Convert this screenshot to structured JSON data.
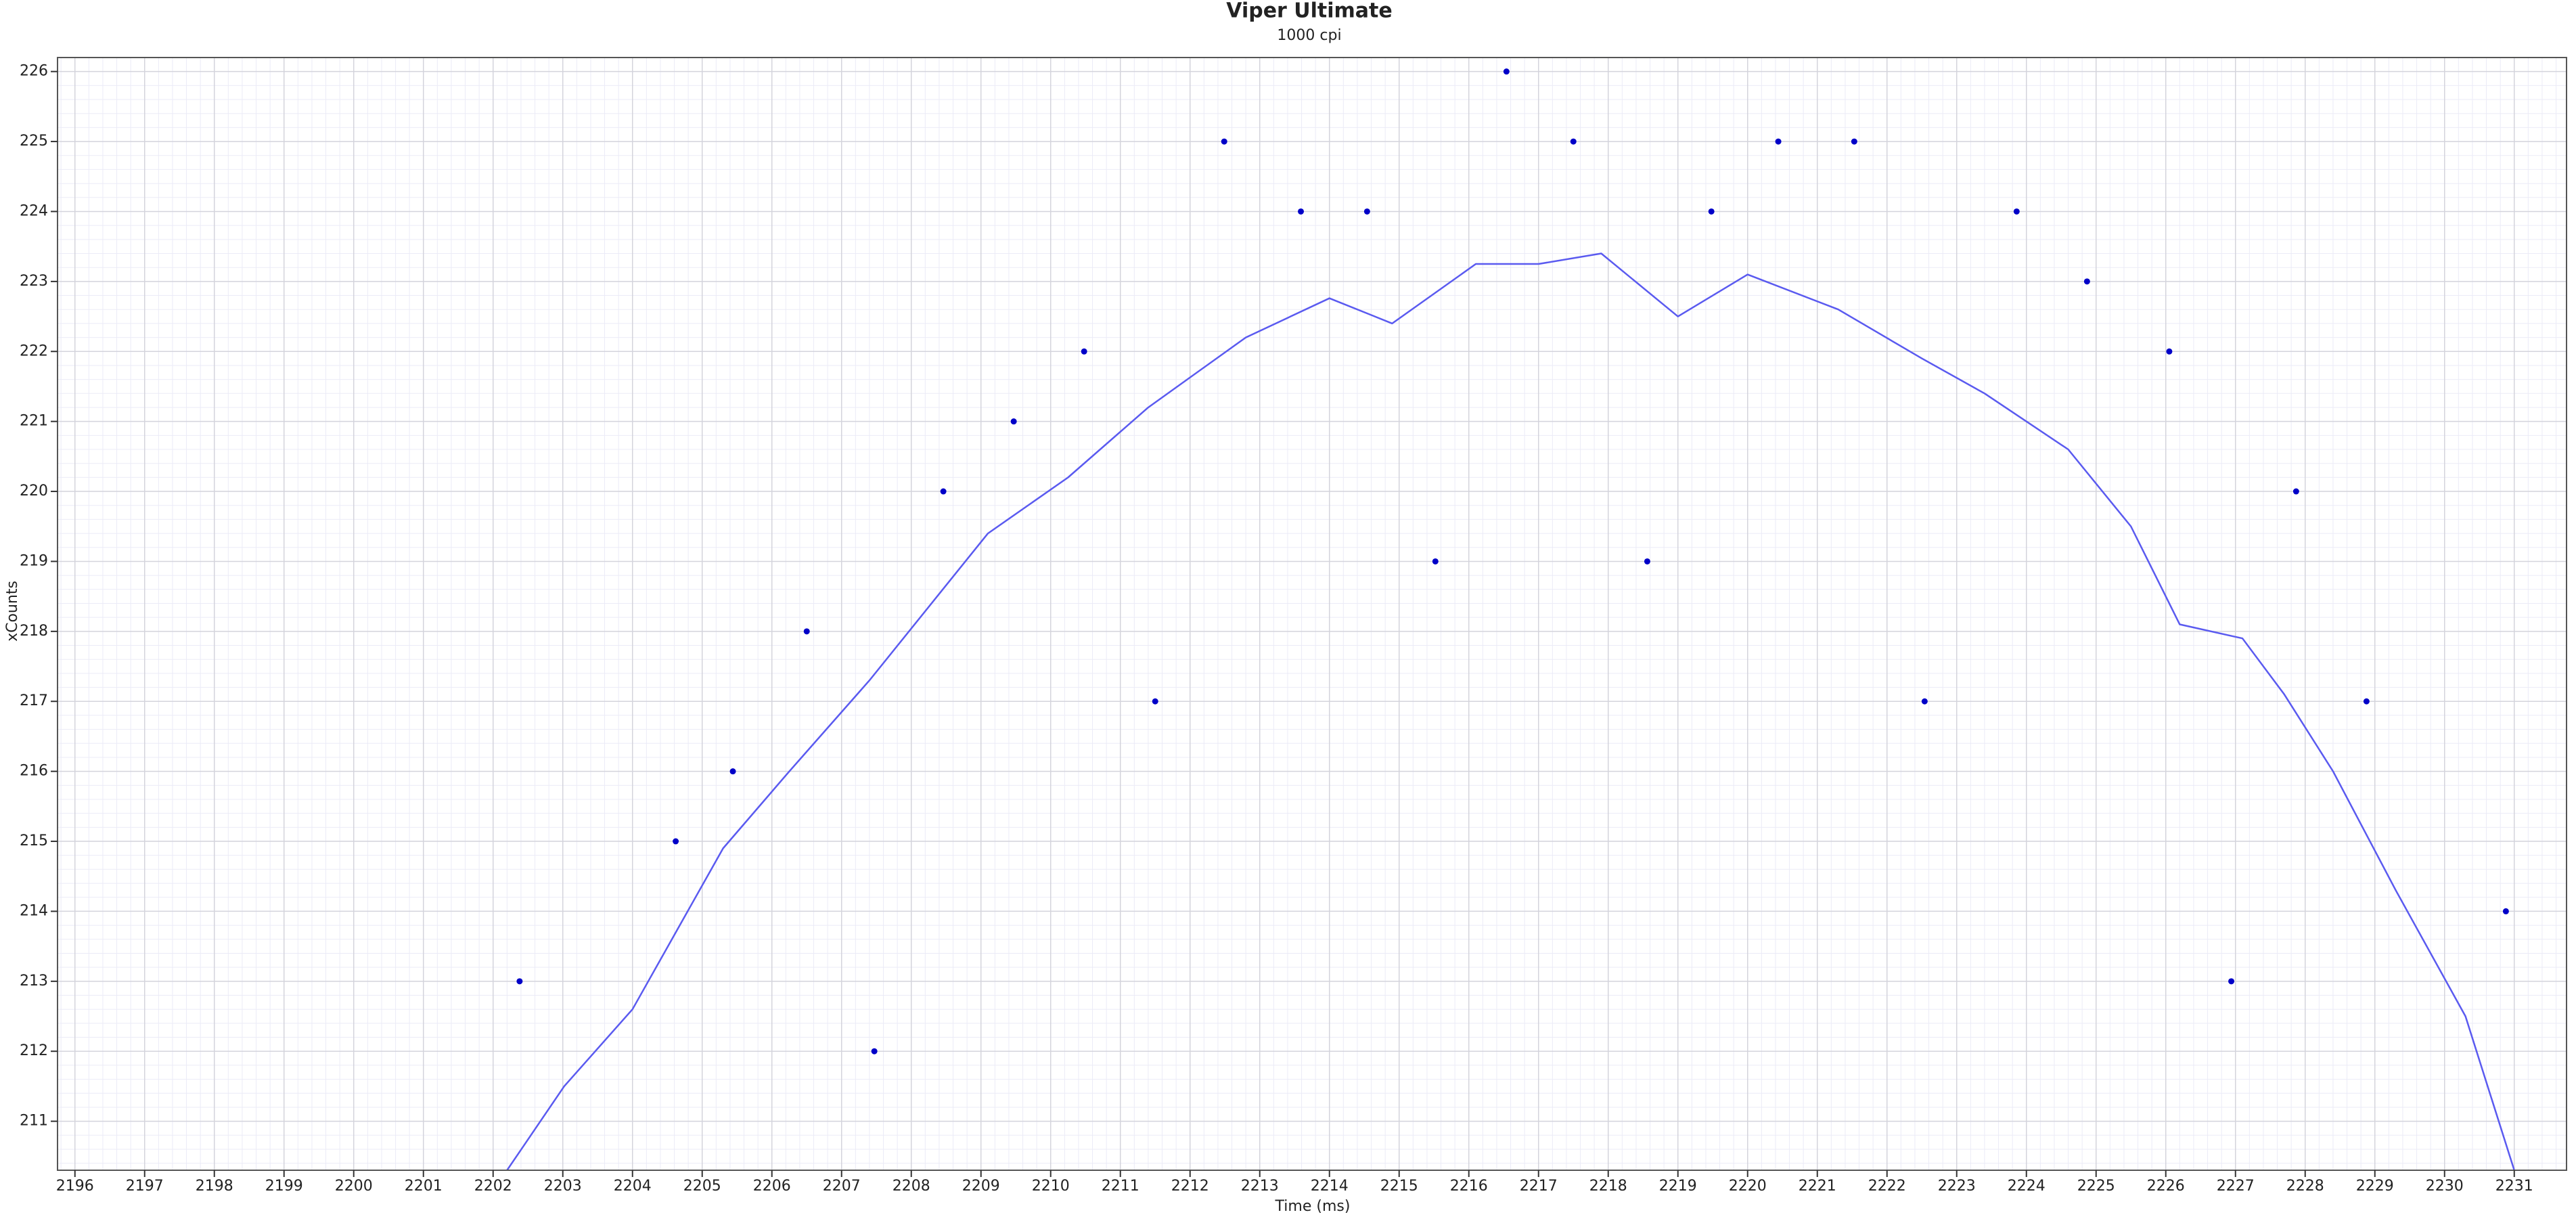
{
  "chart_data": {
    "type": "scatter",
    "title": "Viper Ultimate",
    "subtitle": "1000 cpi",
    "x_label": "Time (ms)",
    "y_label": "xCounts",
    "xlim": [
      2195.75,
      2231.75
    ],
    "ylim": [
      210.3,
      226.2
    ],
    "xticks": [
      2196,
      2197,
      2198,
      2199,
      2200,
      2201,
      2202,
      2203,
      2204,
      2205,
      2206,
      2207,
      2208,
      2209,
      2210,
      2211,
      2212,
      2213,
      2214,
      2215,
      2216,
      2217,
      2218,
      2219,
      2220,
      2221,
      2222,
      2223,
      2224,
      2225,
      2226,
      2227,
      2228,
      2229,
      2230,
      2231
    ],
    "yticks": [
      211,
      212,
      213,
      214,
      215,
      216,
      217,
      218,
      219,
      220,
      221,
      222,
      223,
      224,
      225,
      226
    ],
    "grid": true,
    "series": [
      {
        "type": "scatter",
        "color": "#0000c8",
        "x": [
          2202.38,
          2204.62,
          2205.44,
          2206.5,
          2207.47,
          2208.46,
          2209.47,
          2210.48,
          2211.5,
          2212.49,
          2213.59,
          2214.54,
          2215.52,
          2216.54,
          2217.5,
          2218.56,
          2219.48,
          2220.44,
          2221.53,
          2222.54,
          2223.86,
          2224.87,
          2226.05,
          2226.94,
          2227.87,
          2228.88,
          2230.88
        ],
        "values": [
          213,
          215,
          216,
          218,
          212,
          220,
          221,
          222,
          217,
          225,
          224,
          224,
          219,
          226,
          225,
          219,
          224,
          225,
          225,
          217,
          224,
          223,
          222,
          213,
          220,
          217,
          214
        ]
      },
      {
        "type": "line",
        "color": "#5a5af0",
        "x": [
          2202.2,
          2203.02,
          2204.0,
          2205.3,
          2206.25,
          2207.4,
          2209.1,
          2210.25,
          2211.4,
          2212.8,
          2214.0,
          2214.9,
          2216.1,
          2217.0,
          2217.9,
          2219.0,
          2220.0,
          2221.3,
          2222.5,
          2223.4,
          2224.6,
          2225.5,
          2226.2,
          2227.1,
          2227.7,
          2228.4,
          2229.3,
          2230.3,
          2231.0
        ],
        "values": [
          210.3,
          211.5,
          212.6,
          214.9,
          216,
          217.3,
          219.4,
          220.2,
          221.2,
          222.2,
          222.76,
          222.4,
          223.25,
          223.25,
          223.4,
          222.5,
          223.1,
          222.6,
          221.9,
          221.4,
          220.6,
          219.5,
          218.1,
          217.9,
          217.1,
          216,
          214.3,
          212.5,
          210.3
        ]
      }
    ]
  }
}
